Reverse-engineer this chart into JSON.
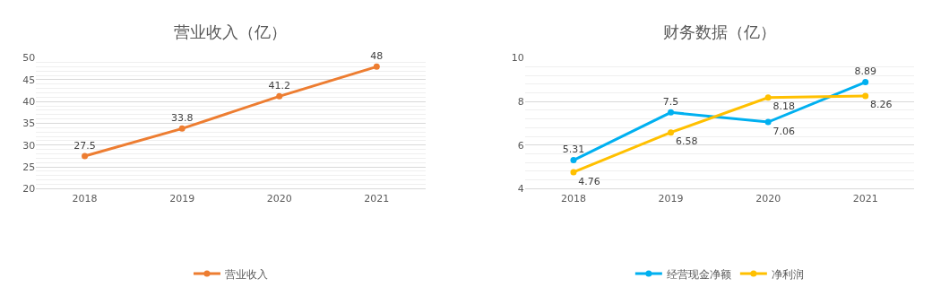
{
  "chart_data": [
    {
      "type": "line",
      "title": "营业收入（亿）",
      "categories": [
        "2018",
        "2019",
        "2020",
        "2021"
      ],
      "series": [
        {
          "name": "营业收入",
          "color": "#ed7d31",
          "values": [
            27.5,
            33.8,
            41.2,
            48
          ]
        }
      ],
      "ylim": [
        20,
        50
      ],
      "yticks": [
        20,
        25,
        30,
        35,
        40,
        45,
        50
      ],
      "grid": "y",
      "legend": "bottom",
      "marker": "circle",
      "line_style": "solid",
      "data_labels": true
    },
    {
      "type": "line",
      "title": "财务数据（亿）",
      "categories": [
        "2018",
        "2019",
        "2020",
        "2021"
      ],
      "series": [
        {
          "name": "经营现金净额",
          "color": "#00b0f0",
          "values": [
            5.31,
            7.5,
            7.06,
            8.89
          ]
        },
        {
          "name": "净利润",
          "color": "#ffc000",
          "values": [
            4.76,
            6.58,
            8.18,
            8.26
          ]
        }
      ],
      "ylim": [
        4,
        10
      ],
      "yticks": [
        4,
        6,
        8,
        10
      ],
      "grid": "y",
      "legend": "bottom",
      "marker": "circle",
      "line_style": "solid",
      "data_labels": true
    }
  ]
}
